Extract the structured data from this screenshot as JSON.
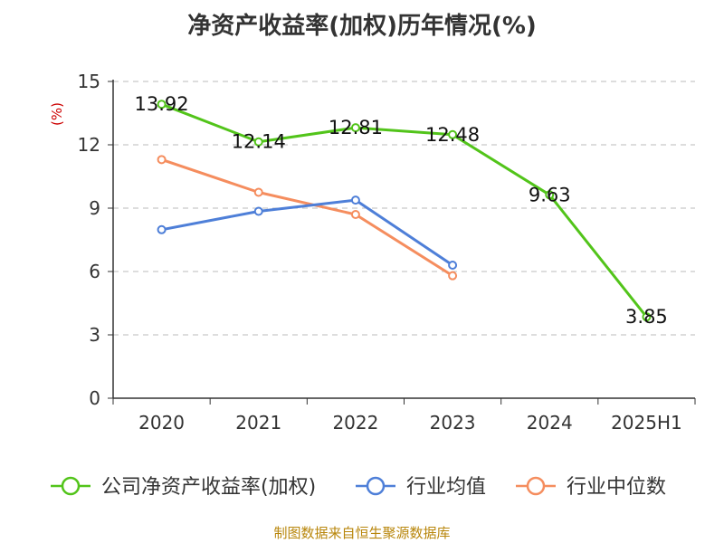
{
  "chart_data": {
    "type": "line",
    "title": "净资产收益率(加权)历年情况(%)",
    "ylabel": "(%)",
    "xlabel": "",
    "categories": [
      "2020",
      "2021",
      "2022",
      "2023",
      "2024",
      "2025H1"
    ],
    "ylim": [
      0,
      15
    ],
    "yticks": [
      0,
      3,
      6,
      9,
      12,
      15
    ],
    "grid": true,
    "legend_position": "bottom",
    "series": [
      {
        "name": "公司净资产收益率(加权)",
        "color": "#52c41a",
        "values": [
          13.92,
          12.14,
          12.81,
          12.48,
          9.63,
          3.85
        ],
        "labels": [
          "13.92",
          "12.14",
          "12.81",
          "12.48",
          "9.63",
          "3.85"
        ]
      },
      {
        "name": "行业均值",
        "color": "#4e7fd8",
        "values": [
          7.98,
          8.85,
          9.38,
          6.3,
          null,
          null
        ]
      },
      {
        "name": "行业中位数",
        "color": "#f58d5e",
        "values": [
          11.3,
          9.75,
          8.7,
          5.8,
          null,
          null
        ]
      }
    ]
  },
  "source": "制图数据来自恒生聚源数据库",
  "colors": {
    "axis": "#333333",
    "grid": "#bbbbbb",
    "ylabel": "#cc0000",
    "source": "#b8860b"
  }
}
